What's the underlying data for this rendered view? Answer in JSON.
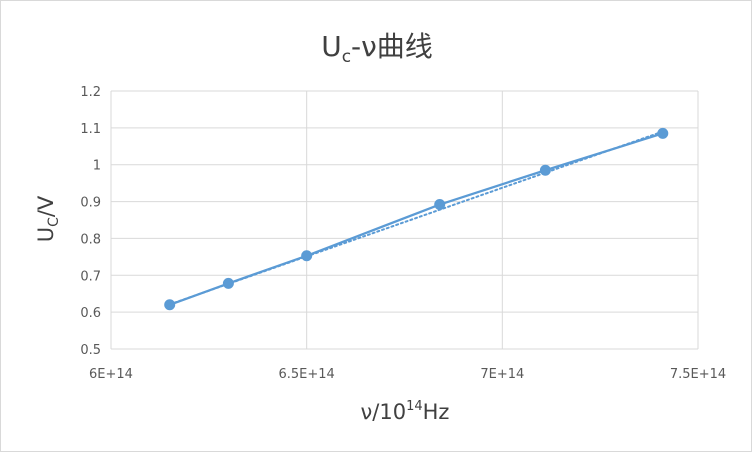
{
  "chart_data": {
    "type": "scatter",
    "title": {
      "main": "U",
      "sub": "c",
      "rest": "-ν曲线"
    },
    "xlabel": {
      "main": "ν/10",
      "sup": "14",
      "rest": "Hz"
    },
    "ylabel": {
      "main": "U",
      "sub": "C",
      "rest": "/V"
    },
    "xlim": [
      600000000000000.0,
      750000000000000.0
    ],
    "ylim": [
      0.5,
      1.2
    ],
    "x_ticks": [
      600000000000000.0,
      650000000000000.0,
      700000000000000.0,
      750000000000000.0
    ],
    "x_tick_labels": [
      "6E+14",
      "6.5E+14",
      "7E+14",
      "7.5E+14"
    ],
    "y_ticks": [
      0.5,
      0.6,
      0.7,
      0.8,
      0.9,
      1.0,
      1.1,
      1.2
    ],
    "y_tick_labels": [
      "0.5",
      "0.6",
      "0.7",
      "0.8",
      "0.9",
      "1",
      "1.1",
      "1.2"
    ],
    "grid": true,
    "series": [
      {
        "x": [
          615000000000000.0,
          630000000000000.0,
          650000000000000.0,
          684000000000000.0,
          711000000000000.0,
          741000000000000.0
        ],
        "y": [
          0.62,
          0.678,
          0.753,
          0.892,
          0.985,
          1.085
        ],
        "color": "#5b9bd5",
        "line": "solid",
        "markers": true
      }
    ],
    "trendline": {
      "style": "dotted",
      "color": "#5b9bd5",
      "x": [
        615000000000000.0,
        741000000000000.0
      ],
      "y": [
        0.621,
        1.09
      ]
    }
  },
  "colors": {
    "series": "#5b9bd5",
    "grid": "#d9d9d9",
    "text": "#595959",
    "title": "#404040"
  }
}
